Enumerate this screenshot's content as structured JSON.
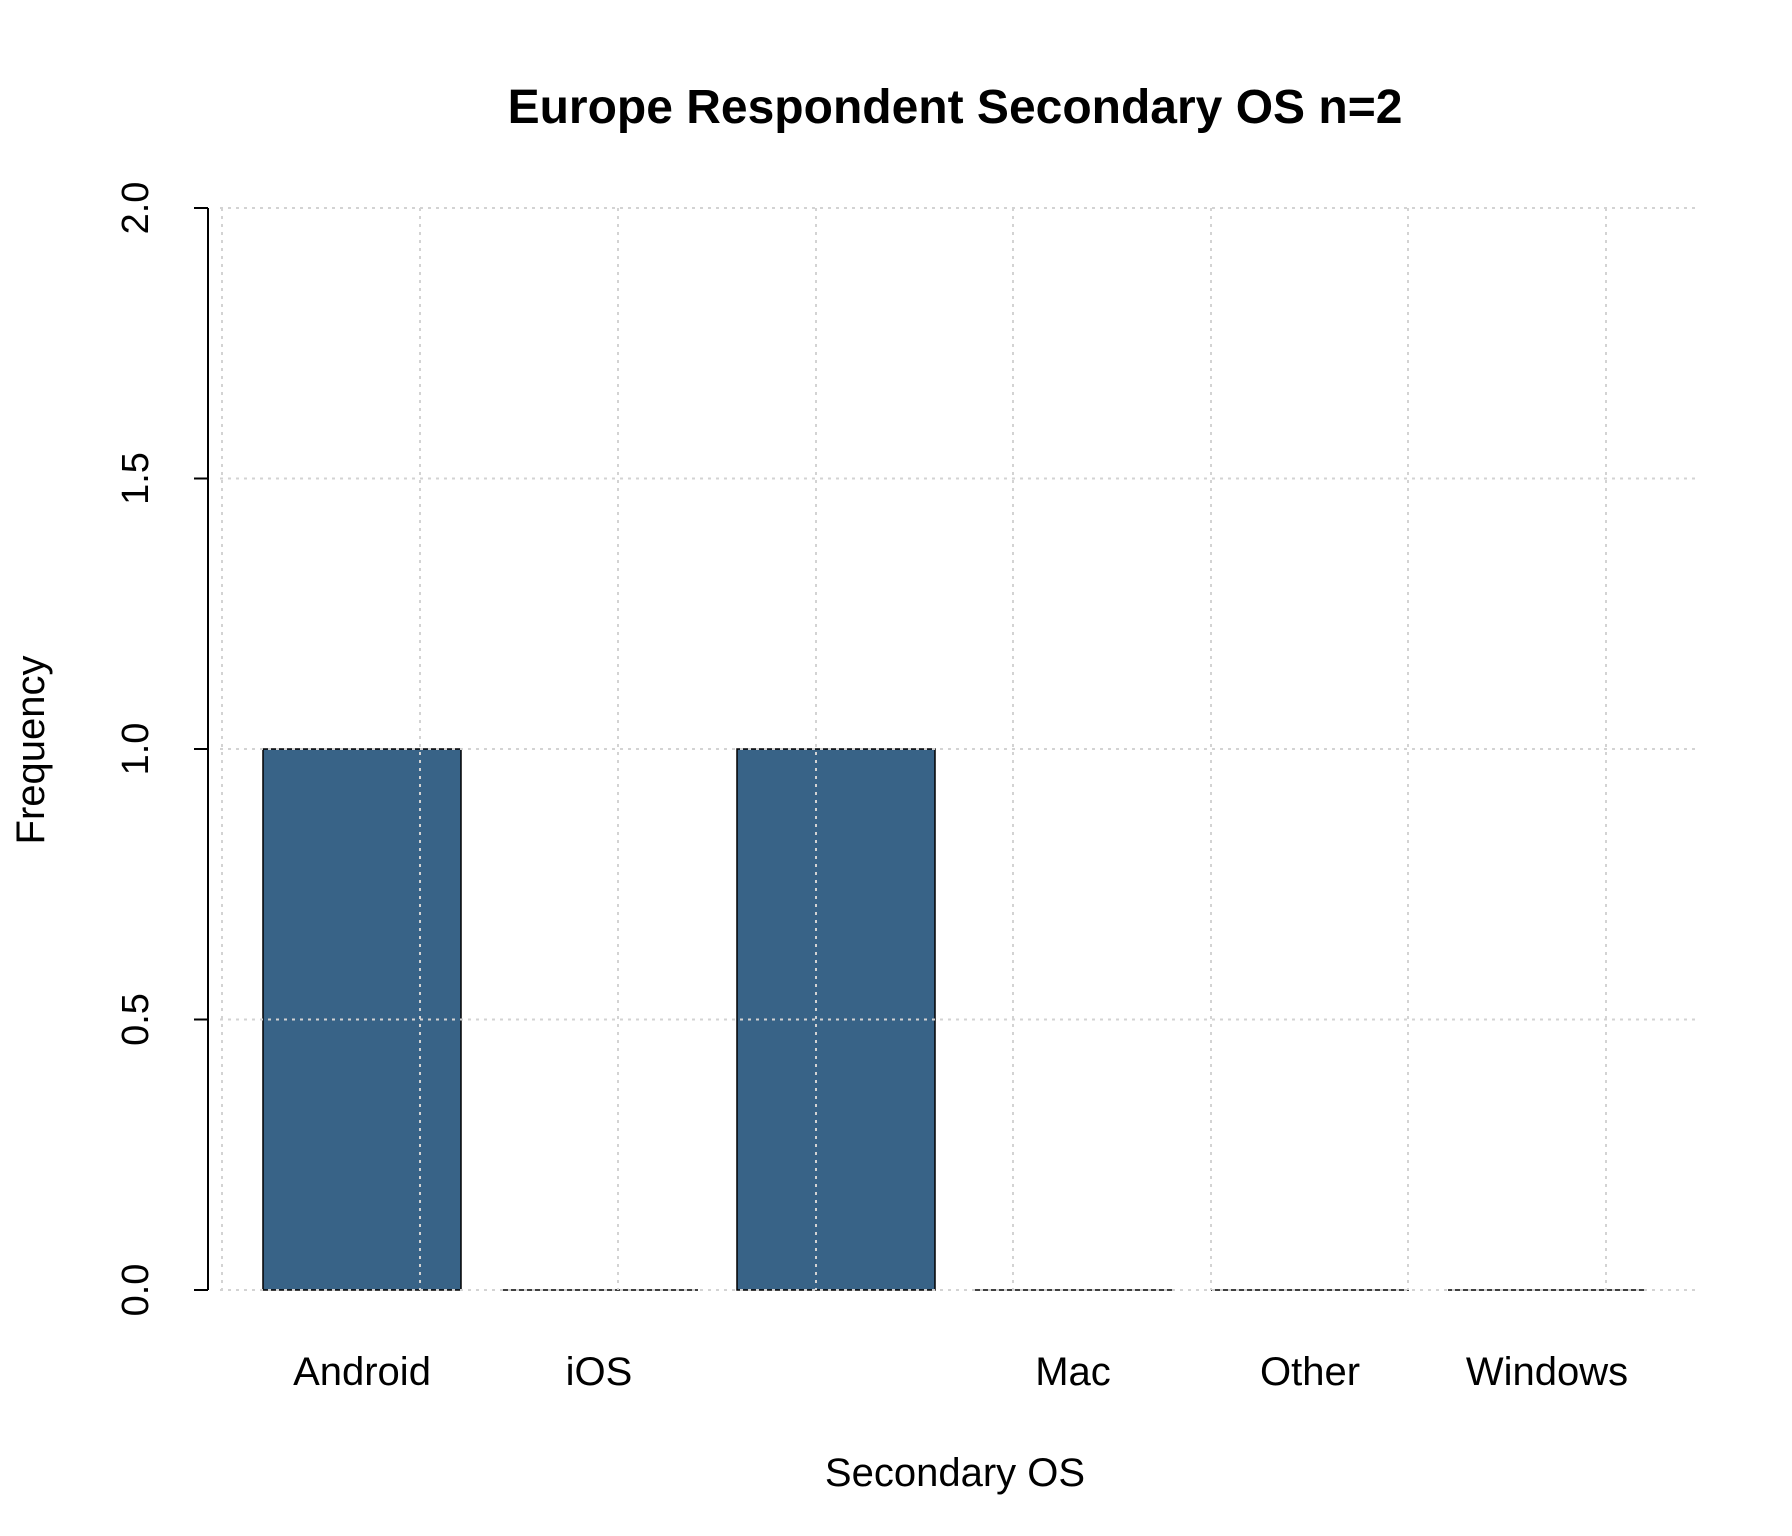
{
  "chart_data": {
    "type": "bar",
    "title": "Europe Respondent Secondary OS n=2",
    "xlabel": "Secondary OS",
    "ylabel": "Frequency",
    "categories": [
      "Android",
      "iOS",
      "",
      "Mac",
      "Other",
      "Windows"
    ],
    "values": [
      1,
      0,
      1,
      0,
      0,
      0
    ],
    "ylim": [
      0,
      2
    ],
    "yticks": [
      "0.0",
      "0.5",
      "1.0",
      "1.5",
      "2.0"
    ],
    "ytick_values": [
      0,
      0.5,
      1.0,
      1.5,
      2.0
    ],
    "grid": true,
    "bar_color": "#386387"
  }
}
